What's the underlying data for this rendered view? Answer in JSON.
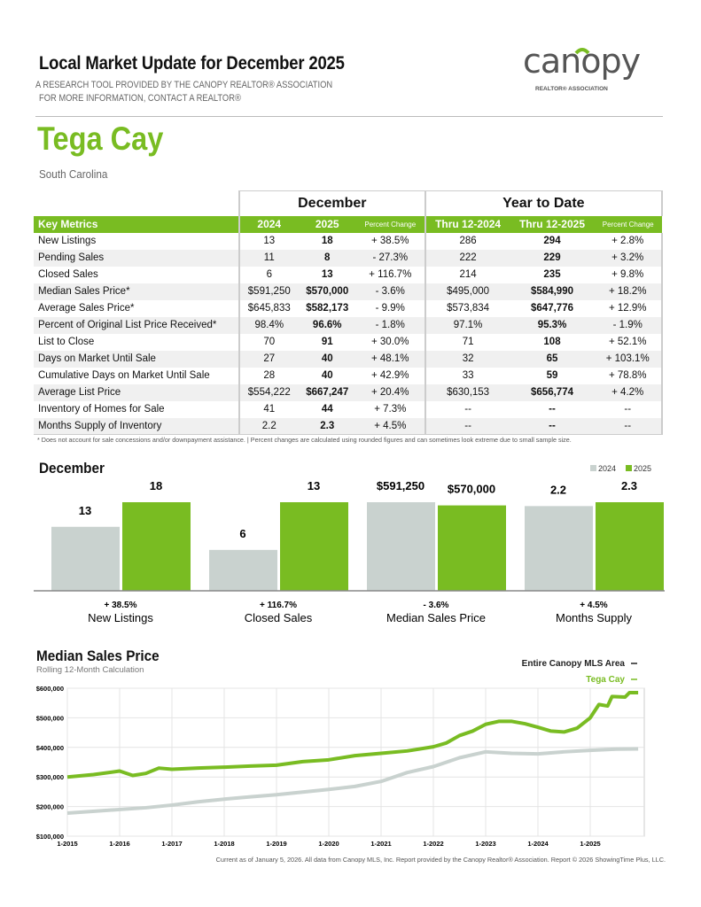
{
  "header": {
    "title": "Local Market Update for December 2025",
    "subtitle1": "A RESEARCH TOOL PROVIDED BY THE CANOPY REALTOR® ASSOCIATION",
    "subtitle2": "FOR MORE INFORMATION, CONTACT A REALTOR®",
    "logo_text": "canopy",
    "logo_tagline": "REALTOR® ASSOCIATION"
  },
  "area": {
    "name": "Tega Cay",
    "state": "South Carolina"
  },
  "table": {
    "group_month": "December",
    "group_ytd": "Year to Date",
    "headers": [
      "Key Metrics",
      "2024",
      "2025",
      "Percent Change",
      "Thru 12-2024",
      "Thru 12-2025",
      "Percent Change"
    ],
    "rows": [
      [
        "New Listings",
        "13",
        "18",
        "+ 38.5%",
        "286",
        "294",
        "+ 2.8%"
      ],
      [
        "Pending Sales",
        "11",
        "8",
        "- 27.3%",
        "222",
        "229",
        "+ 3.2%"
      ],
      [
        "Closed Sales",
        "6",
        "13",
        "+ 116.7%",
        "214",
        "235",
        "+ 9.8%"
      ],
      [
        "Median Sales Price*",
        "$591,250",
        "$570,000",
        "- 3.6%",
        "$495,000",
        "$584,990",
        "+ 18.2%"
      ],
      [
        "Average Sales Price*",
        "$645,833",
        "$582,173",
        "- 9.9%",
        "$573,834",
        "$647,776",
        "+ 12.9%"
      ],
      [
        "Percent of Original List Price Received*",
        "98.4%",
        "96.6%",
        "- 1.8%",
        "97.1%",
        "95.3%",
        "- 1.9%"
      ],
      [
        "List to Close",
        "70",
        "91",
        "+ 30.0%",
        "71",
        "108",
        "+ 52.1%"
      ],
      [
        "Days on Market Until Sale",
        "27",
        "40",
        "+ 48.1%",
        "32",
        "65",
        "+ 103.1%"
      ],
      [
        "Cumulative Days on Market Until Sale",
        "28",
        "40",
        "+ 42.9%",
        "33",
        "59",
        "+ 78.8%"
      ],
      [
        "Average List Price",
        "$554,222",
        "$667,247",
        "+ 20.4%",
        "$630,153",
        "$656,774",
        "+ 4.2%"
      ],
      [
        "Inventory of Homes for Sale",
        "41",
        "44",
        "+ 7.3%",
        "--",
        "--",
        "--"
      ],
      [
        "Months Supply of Inventory",
        "2.2",
        "2.3",
        "+ 4.5%",
        "--",
        "--",
        "--"
      ]
    ],
    "footnote": "* Does not account for sale concessions and/or downpayment assistance.  |  Percent changes are calculated using rounded figures and can sometimes look extreme due to small sample size."
  },
  "colors": {
    "green": "#79bc22",
    "gray": "#c9d2cf",
    "logo_gray": "#555555"
  },
  "chart_data": [
    {
      "type": "bar",
      "title": "December",
      "legend": [
        "2024",
        "2025"
      ],
      "legend_position": "top-right",
      "categories": [
        "New Listings",
        "Closed Sales",
        "Median Sales Price",
        "Months Supply"
      ],
      "series": [
        {
          "name": "2024",
          "values": [
            13,
            6,
            591250,
            2.2
          ],
          "labels": [
            "13",
            "6",
            "$591,250",
            "2.2"
          ]
        },
        {
          "name": "2025",
          "values": [
            18,
            13,
            570000,
            2.3
          ],
          "labels": [
            "18",
            "13",
            "$570,000",
            "2.3"
          ]
        }
      ],
      "changes": [
        "+ 38.5%",
        "+ 116.7%",
        "- 3.6%",
        "+ 4.5%"
      ]
    },
    {
      "type": "line",
      "title": "Median Sales Price",
      "subtitle": "Rolling 12-Month Calculation",
      "legend_position": "top-right",
      "ylim": [
        100000,
        600000
      ],
      "yticks": [
        "$100,000",
        "$200,000",
        "$300,000",
        "$400,000",
        "$500,000",
        "$600,000"
      ],
      "xticks": [
        "1-2015",
        "1-2016",
        "1-2017",
        "1-2018",
        "1-2019",
        "1-2020",
        "1-2021",
        "1-2022",
        "1-2023",
        "1-2024",
        "1-2025"
      ],
      "grid": true,
      "series": [
        {
          "name": "Entire Canopy MLS Area",
          "color": "#c9d2cf",
          "points": [
            [
              "2015-01",
              178000
            ],
            [
              "2016-01",
              190000
            ],
            [
              "2016-07",
              196000
            ],
            [
              "2017-01",
              205000
            ],
            [
              "2017-07",
              216000
            ],
            [
              "2018-01",
              225000
            ],
            [
              "2018-07",
              233000
            ],
            [
              "2019-01",
              240000
            ],
            [
              "2019-07",
              249000
            ],
            [
              "2020-01",
              258000
            ],
            [
              "2020-07",
              268000
            ],
            [
              "2021-01",
              285000
            ],
            [
              "2021-07",
              315000
            ],
            [
              "2022-01",
              335000
            ],
            [
              "2022-07",
              365000
            ],
            [
              "2023-01",
              385000
            ],
            [
              "2023-07",
              380000
            ],
            [
              "2024-01",
              378000
            ],
            [
              "2024-07",
              385000
            ],
            [
              "2025-01",
              390000
            ],
            [
              "2025-07",
              394000
            ],
            [
              "2025-12",
              395000
            ]
          ]
        },
        {
          "name": "Tega Cay",
          "color": "#79bc22",
          "points": [
            [
              "2015-01",
              300000
            ],
            [
              "2015-07",
              308000
            ],
            [
              "2016-01",
              320000
            ],
            [
              "2016-04",
              305000
            ],
            [
              "2016-07",
              312000
            ],
            [
              "2016-10",
              330000
            ],
            [
              "2017-01",
              326000
            ],
            [
              "2017-07",
              330000
            ],
            [
              "2018-01",
              333000
            ],
            [
              "2018-07",
              337000
            ],
            [
              "2019-01",
              340000
            ],
            [
              "2019-07",
              352000
            ],
            [
              "2020-01",
              358000
            ],
            [
              "2020-07",
              372000
            ],
            [
              "2021-01",
              380000
            ],
            [
              "2021-07",
              388000
            ],
            [
              "2022-01",
              402000
            ],
            [
              "2022-04",
              415000
            ],
            [
              "2022-07",
              440000
            ],
            [
              "2022-10",
              455000
            ],
            [
              "2023-01",
              478000
            ],
            [
              "2023-04",
              488000
            ],
            [
              "2023-07",
              488000
            ],
            [
              "2023-10",
              480000
            ],
            [
              "2024-01",
              468000
            ],
            [
              "2024-04",
              455000
            ],
            [
              "2024-07",
              452000
            ],
            [
              "2024-10",
              465000
            ],
            [
              "2025-01",
              500000
            ],
            [
              "2025-03",
              545000
            ],
            [
              "2025-05",
              540000
            ],
            [
              "2025-06",
              572000
            ],
            [
              "2025-09",
              570000
            ],
            [
              "2025-10",
              585000
            ],
            [
              "2025-12",
              585000
            ]
          ]
        }
      ]
    }
  ],
  "credit": "Current as of January 5, 2026. All data from Canopy MLS, Inc. Report provided by the Canopy Realtor® Association. Report © 2026 ShowingTime Plus, LLC."
}
